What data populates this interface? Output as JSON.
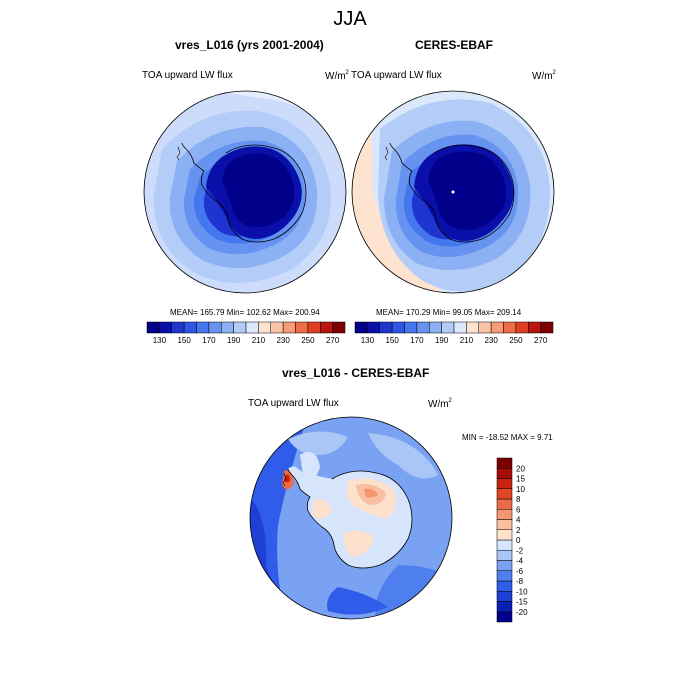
{
  "figure": {
    "title": "JJA",
    "left_panel": {
      "subtitle": "vres_L016 (yrs 2001-2004)",
      "variable": "TOA upward LW flux",
      "unit_base": "W/m",
      "unit_exp": "2",
      "stats": "MEAN= 165.79  Min= 102.62  Max= 200.94"
    },
    "right_panel": {
      "subtitle": "CERES-EBAF",
      "variable": "TOA upward LW flux",
      "unit_base": "W/m",
      "unit_exp": "2",
      "stats": "MEAN= 170.29  Min=  99.05  Max= 209.14"
    },
    "diff_panel": {
      "subtitle": "vres_L016 - CERES-EBAF",
      "variable": "TOA upward LW flux",
      "unit_base": "W/m",
      "unit_exp": "2",
      "stats": "MIN = -18.52 MAX =  9.71"
    }
  },
  "chart_data": [
    {
      "type": "heatmap",
      "projection": "south-polar-stereographic",
      "title": "vres_L016 (yrs 2001-2004)",
      "variable": "TOA upward LW flux",
      "colorbar": {
        "orientation": "horizontal",
        "levels": [
          130,
          140,
          150,
          160,
          170,
          180,
          190,
          200,
          210,
          220,
          230,
          240,
          250,
          260,
          270
        ],
        "tick_labels": [
          "130",
          "150",
          "170",
          "190",
          "210",
          "230",
          "250",
          "270"
        ],
        "colors": [
          "#00008a",
          "#0a0faa",
          "#1f35d1",
          "#2f56e6",
          "#4476ee",
          "#6793f0",
          "#8bb0f4",
          "#b3cdf8",
          "#dbe8fb",
          "#fde3d0",
          "#fbc3a6",
          "#f79a76",
          "#ef6c48",
          "#dc3e22",
          "#b8160e",
          "#7d0000"
        ]
      },
      "stats": {
        "mean": 165.79,
        "min": 102.62,
        "max": 200.94
      }
    },
    {
      "type": "heatmap",
      "projection": "south-polar-stereographic",
      "title": "CERES-EBAF",
      "variable": "TOA upward LW flux",
      "colorbar": {
        "orientation": "horizontal",
        "levels": [
          130,
          140,
          150,
          160,
          170,
          180,
          190,
          200,
          210,
          220,
          230,
          240,
          250,
          260,
          270
        ],
        "tick_labels": [
          "130",
          "150",
          "170",
          "190",
          "210",
          "230",
          "250",
          "270"
        ],
        "colors": [
          "#00008a",
          "#0a0faa",
          "#1f35d1",
          "#2f56e6",
          "#4476ee",
          "#6793f0",
          "#8bb0f4",
          "#b3cdf8",
          "#dbe8fb",
          "#fde3d0",
          "#fbc3a6",
          "#f79a76",
          "#ef6c48",
          "#dc3e22",
          "#b8160e",
          "#7d0000"
        ]
      },
      "stats": {
        "mean": 170.29,
        "min": 99.05,
        "max": 209.14
      }
    },
    {
      "type": "heatmap",
      "projection": "south-polar-stereographic",
      "title": "vres_L016 - CERES-EBAF",
      "variable": "TOA upward LW flux",
      "colorbar": {
        "orientation": "vertical",
        "levels": [
          -20,
          -15,
          -10,
          -8,
          -6,
          -4,
          -2,
          0,
          2,
          4,
          6,
          8,
          10,
          15,
          20
        ],
        "tick_labels": [
          "-20",
          "-15",
          "-10",
          "-8",
          "-6",
          "-4",
          "-2",
          "0",
          "2",
          "4",
          "6",
          "8",
          "10",
          "15",
          "20"
        ],
        "colors": [
          "#00008a",
          "#0a1fb5",
          "#1f3fd6",
          "#2f5ce8",
          "#4f7fee",
          "#7aa2f2",
          "#a9c6f7",
          "#d6e5fb",
          "#fde1cd",
          "#f9bfa0",
          "#f4966f",
          "#ec6a45",
          "#e04524",
          "#c92311",
          "#a60d08",
          "#7d0000"
        ]
      },
      "stats": {
        "min": -18.52,
        "max": 9.71
      }
    }
  ]
}
